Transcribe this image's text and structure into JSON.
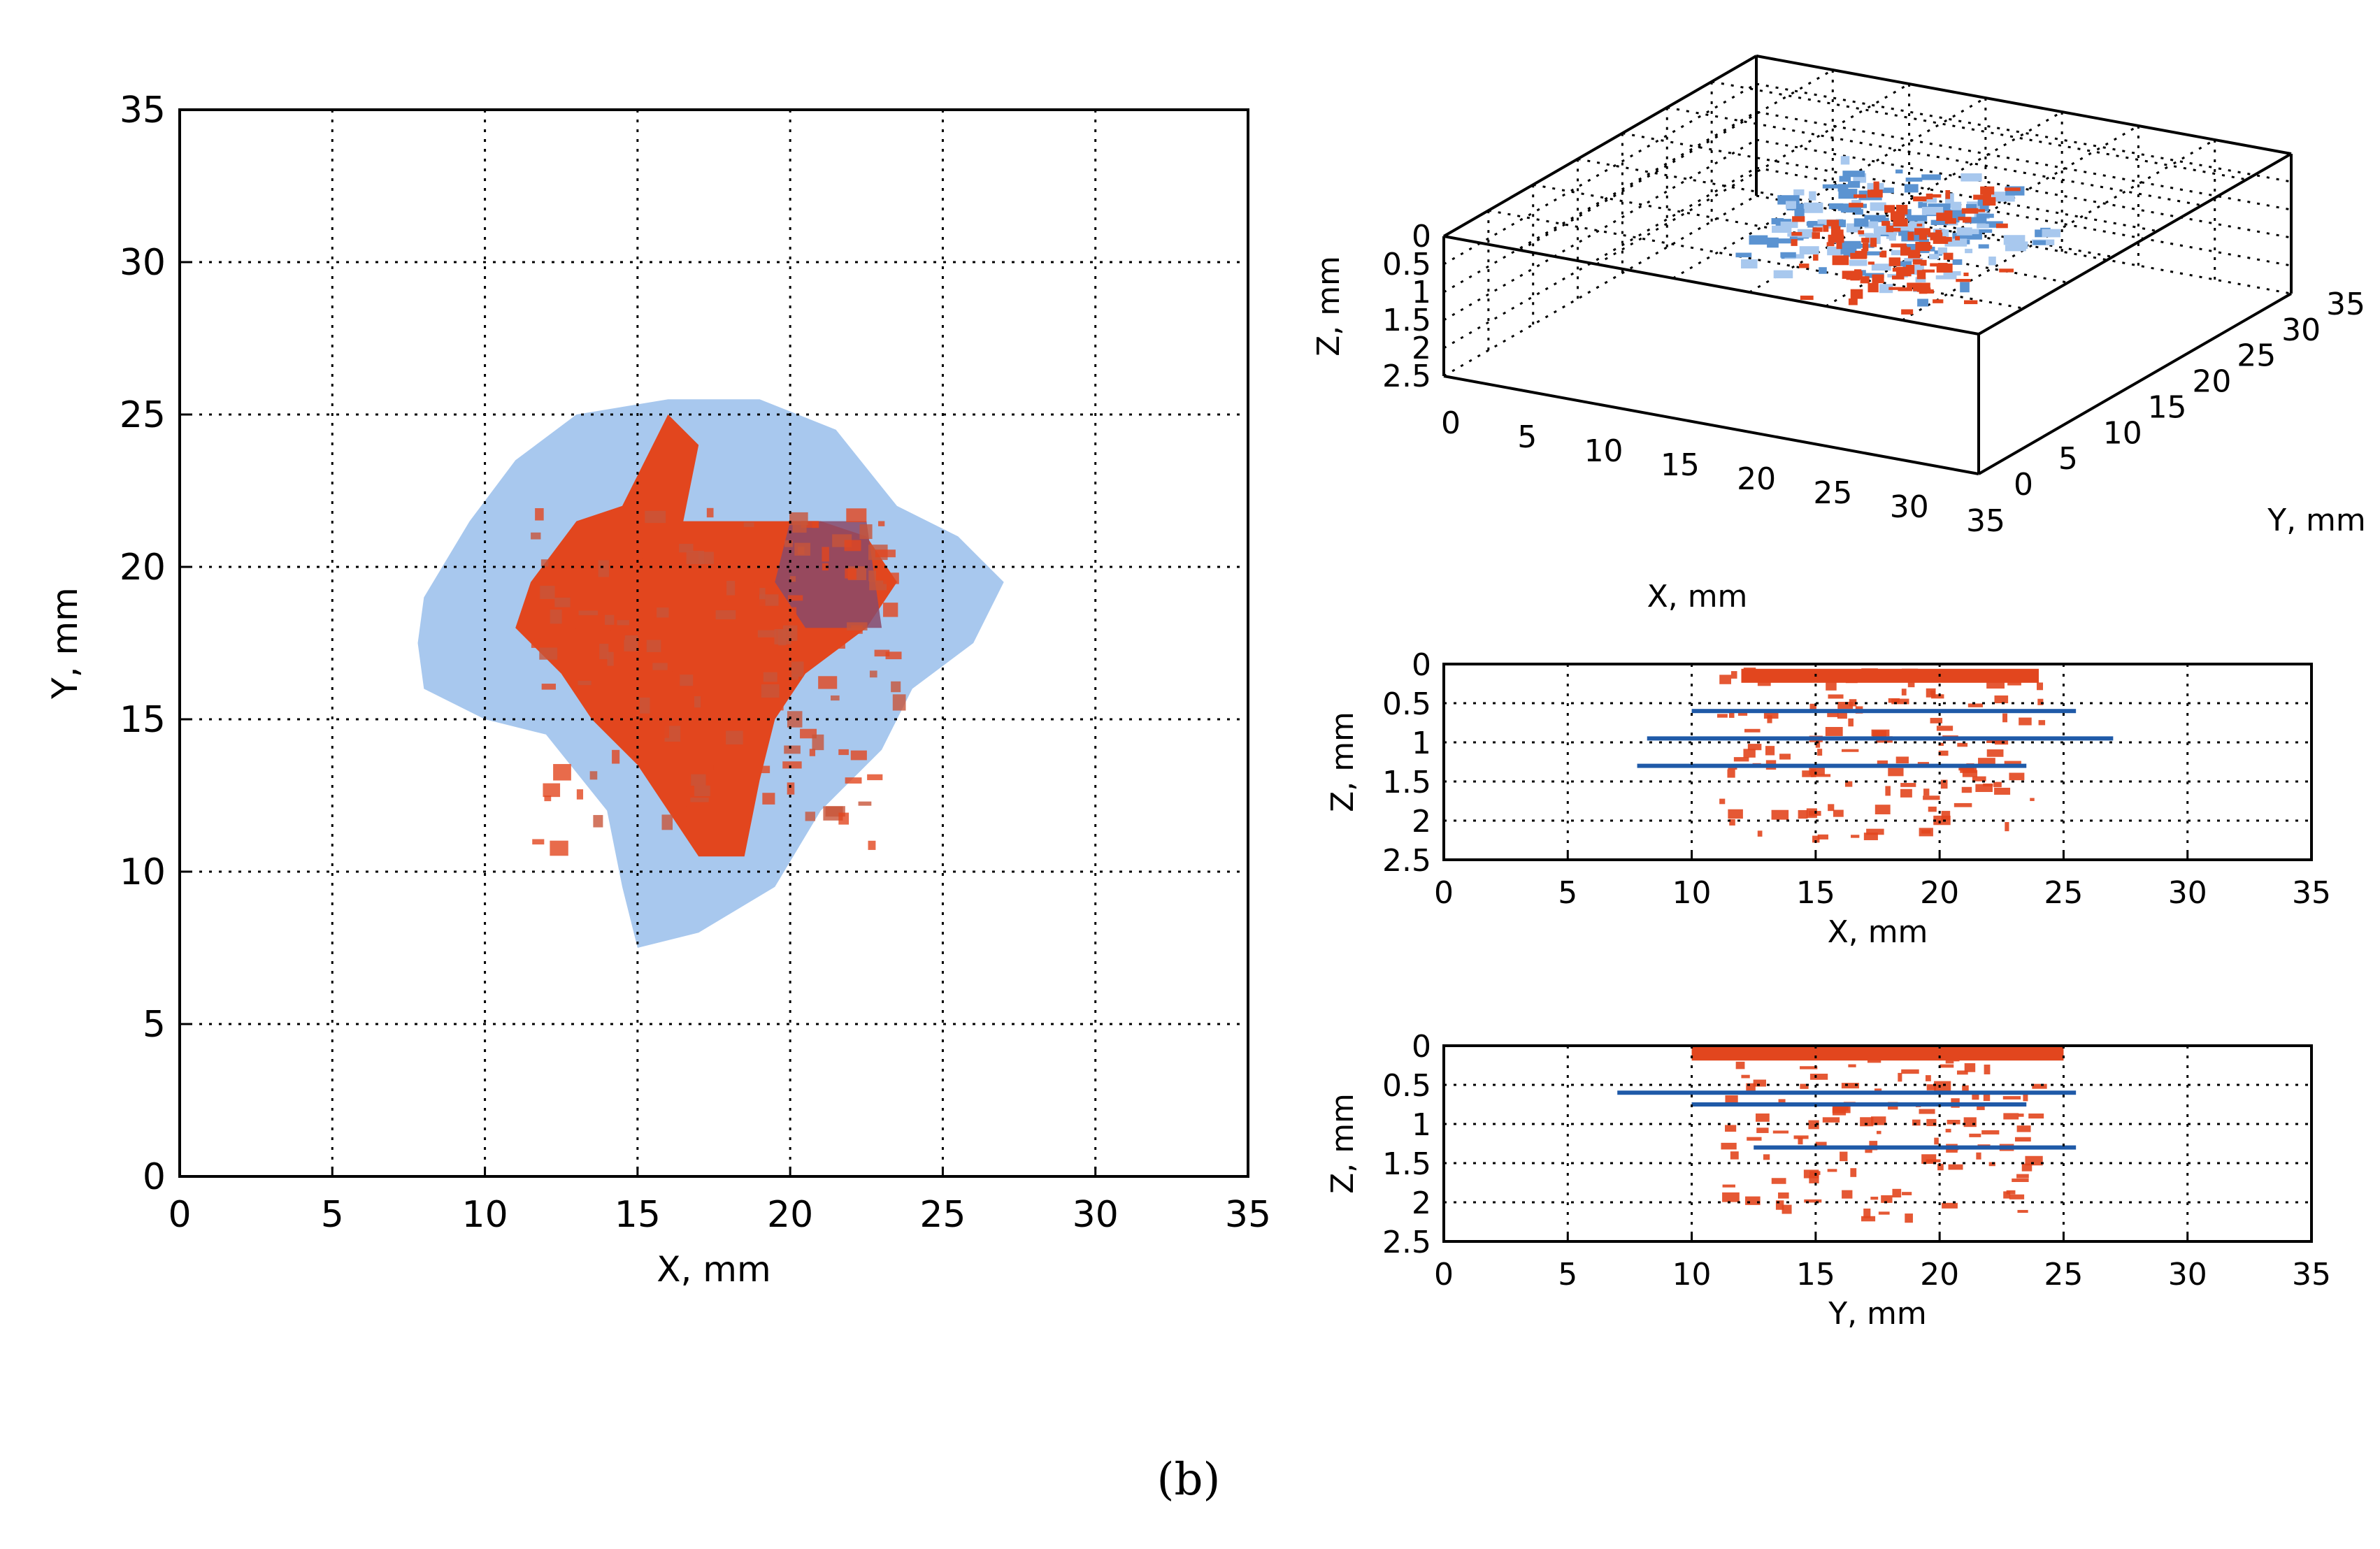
{
  "caption": "(b)",
  "chart_data": [
    {
      "type": "heatmap",
      "view": "top view (X-Y projection)",
      "xlabel": "X, mm",
      "ylabel": "Y, mm",
      "xlim": [
        0,
        35
      ],
      "ylim": [
        0,
        35
      ],
      "xticks": [
        "0",
        "5",
        "10",
        "15",
        "20",
        "25",
        "30",
        "35"
      ],
      "yticks": [
        "0",
        "5",
        "10",
        "15",
        "20",
        "25",
        "30",
        "35"
      ],
      "grid": true,
      "colors": {
        "light_region": "#a8c8ee",
        "dense_region": "#e2461e",
        "mixed_region": "#8a4a6a"
      },
      "regions": [
        {
          "name": "light-blue-footprint",
          "outline": [
            [
              8,
              19
            ],
            [
              9.5,
              21.5
            ],
            [
              11,
              23.5
            ],
            [
              13,
              25
            ],
            [
              16,
              25.5
            ],
            [
              19,
              25.5
            ],
            [
              21.5,
              24.5
            ],
            [
              23.5,
              22
            ],
            [
              25.5,
              21
            ],
            [
              27,
              19.5
            ],
            [
              26,
              17.5
            ],
            [
              24,
              16
            ],
            [
              23,
              14
            ],
            [
              21,
              12
            ],
            [
              19.5,
              9.5
            ],
            [
              17,
              8
            ],
            [
              15,
              7.5
            ],
            [
              14.5,
              9.5
            ],
            [
              14,
              12
            ],
            [
              12,
              14.5
            ],
            [
              10,
              15
            ],
            [
              8,
              16
            ],
            [
              7.8,
              17.5
            ]
          ]
        },
        {
          "name": "dense-red-core",
          "outline": [
            [
              11.5,
              19.5
            ],
            [
              13,
              21.5
            ],
            [
              14.5,
              22
            ],
            [
              16,
              25
            ],
            [
              17,
              24
            ],
            [
              16.5,
              21.5
            ],
            [
              19,
              21.5
            ],
            [
              21,
              21.5
            ],
            [
              22.5,
              21
            ],
            [
              23.5,
              19.5
            ],
            [
              22.5,
              18
            ],
            [
              20.5,
              16.5
            ],
            [
              19.5,
              15
            ],
            [
              19,
              13
            ],
            [
              18.5,
              10.5
            ],
            [
              17,
              10.5
            ],
            [
              16,
              12
            ],
            [
              15,
              13.5
            ],
            [
              13.5,
              15
            ],
            [
              12.5,
              16.5
            ],
            [
              11,
              18
            ]
          ]
        },
        {
          "name": "mixed-purple-patch",
          "outline": [
            [
              20,
              21.5
            ],
            [
              22.5,
              21.5
            ],
            [
              23,
              18
            ],
            [
              20.5,
              18
            ],
            [
              19.5,
              19.5
            ]
          ]
        }
      ]
    },
    {
      "type": "scatter",
      "view": "3D view",
      "xlabel": "X, mm",
      "ylabel": "Y, mm",
      "zlabel": "Z, mm",
      "xlim": [
        0,
        35
      ],
      "ylim": [
        0,
        35
      ],
      "zlim": [
        0,
        2.5
      ],
      "xticks": [
        "0",
        "5",
        "10",
        "15",
        "20",
        "25",
        "30",
        "35"
      ],
      "yticks": [
        "0",
        "5",
        "10",
        "15",
        "20",
        "25",
        "30",
        "35"
      ],
      "zticks": [
        "0",
        "0.5",
        "1",
        "1.5",
        "2",
        "2.5"
      ],
      "grid": true
    },
    {
      "type": "heatmap",
      "view": "side view (X-Z projection)",
      "xlabel": "X, mm",
      "ylabel": "Z, mm",
      "xlim": [
        0,
        35
      ],
      "ylim": [
        0,
        2.5
      ],
      "xticks": [
        "0",
        "5",
        "10",
        "15",
        "20",
        "25",
        "30",
        "35"
      ],
      "yticks": [
        "0",
        "0.5",
        "1",
        "1.5",
        "2",
        "2.5"
      ],
      "grid": true,
      "layers": [
        {
          "name": "blue-layer-1",
          "x": [
            10,
            25.5
          ],
          "z": 0.6
        },
        {
          "name": "blue-layer-2",
          "x": [
            8.2,
            27
          ],
          "z": 0.95
        },
        {
          "name": "blue-layer-3",
          "x": [
            7.8,
            23.5
          ],
          "z": 1.3
        },
        {
          "name": "red-top-band",
          "x": [
            12,
            24
          ],
          "z": 0.15
        }
      ]
    },
    {
      "type": "heatmap",
      "view": "side view (Y-Z projection)",
      "xlabel": "Y, mm",
      "ylabel": "Z, mm",
      "xlim": [
        0,
        35
      ],
      "ylim": [
        0,
        2.5
      ],
      "xticks": [
        "0",
        "5",
        "10",
        "15",
        "20",
        "25",
        "30",
        "35"
      ],
      "yticks": [
        "0",
        "0.5",
        "1",
        "1.5",
        "2",
        "2.5"
      ],
      "grid": true,
      "layers": [
        {
          "name": "blue-layer-1",
          "x": [
            7,
            25.5
          ],
          "z": 0.6
        },
        {
          "name": "blue-layer-2",
          "x": [
            10,
            23.5
          ],
          "z": 0.75
        },
        {
          "name": "blue-layer-3",
          "x": [
            12.5,
            25.5
          ],
          "z": 1.3
        },
        {
          "name": "red-top-band",
          "x": [
            10,
            25
          ],
          "z": 0.1
        }
      ]
    }
  ]
}
